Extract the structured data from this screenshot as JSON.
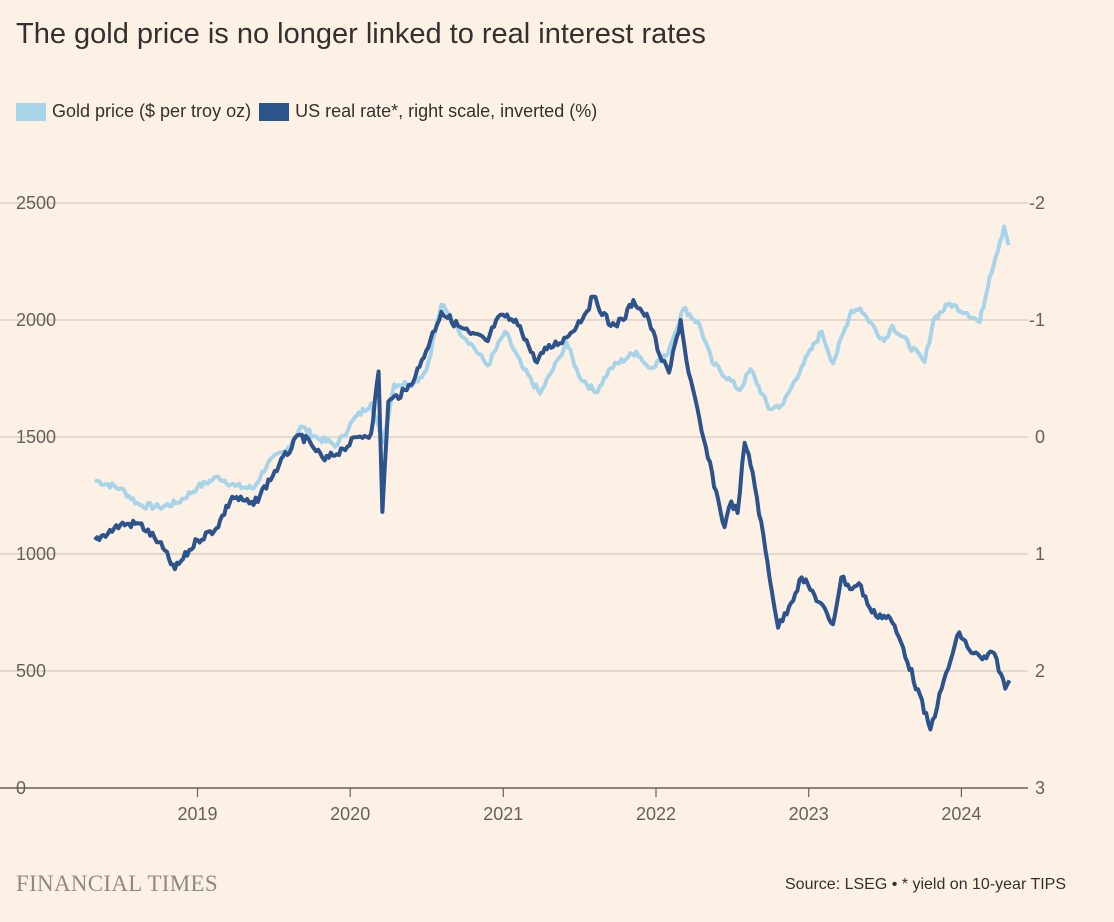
{
  "title": "The gold price is no longer linked to real interest rates",
  "legend": [
    {
      "label": "Gold price ($ per troy oz)",
      "color": "#a8d4ea"
    },
    {
      "label": "US real rate*, right scale, inverted (%)",
      "color": "#2c538c"
    }
  ],
  "source": "Source: LSEG • * yield on 10-year TIPS",
  "brand": "FINANCIAL TIMES",
  "colors": {
    "background": "#fdf1e6",
    "grid": "#ccc1b7",
    "gold": "#a8d4ea",
    "rate": "#2c538c"
  },
  "chart_data": {
    "type": "line",
    "title": "The gold price is no longer linked to real interest rates",
    "x_range": [
      "2018-05-01",
      "2024-05-01"
    ],
    "x_ticks": [
      "2019",
      "2020",
      "2021",
      "2022",
      "2023",
      "2024"
    ],
    "y_left": {
      "ticks": [
        "0",
        "500",
        "1000",
        "1500",
        "2000",
        "2500"
      ],
      "range": [
        0,
        2500
      ]
    },
    "y_right": {
      "ticks": [
        "-2",
        "-1",
        "0",
        "1",
        "2",
        "3"
      ],
      "range": [
        -2,
        3
      ],
      "inverted": true
    },
    "grid": "horizontal",
    "legend_position": "top-left",
    "series": [
      {
        "name": "Gold price ($ per troy oz)",
        "axis": "left",
        "color": "#a8d4ea",
        "points": [
          [
            "2018-05-01",
            1315
          ],
          [
            "2018-07-01",
            1280
          ],
          [
            "2018-08-15",
            1210
          ],
          [
            "2018-10-01",
            1200
          ],
          [
            "2018-11-15",
            1220
          ],
          [
            "2019-01-01",
            1285
          ],
          [
            "2019-02-20",
            1330
          ],
          [
            "2019-04-01",
            1290
          ],
          [
            "2019-05-15",
            1280
          ],
          [
            "2019-06-20",
            1395
          ],
          [
            "2019-08-01",
            1440
          ],
          [
            "2019-09-05",
            1545
          ],
          [
            "2019-10-15",
            1495
          ],
          [
            "2019-12-01",
            1465
          ],
          [
            "2020-01-07",
            1570
          ],
          [
            "2020-02-20",
            1645
          ],
          [
            "2020-03-19",
            1475
          ],
          [
            "2020-04-15",
            1725
          ],
          [
            "2020-06-01",
            1730
          ],
          [
            "2020-07-01",
            1785
          ],
          [
            "2020-08-06",
            2065
          ],
          [
            "2020-09-15",
            1960
          ],
          [
            "2020-10-15",
            1900
          ],
          [
            "2020-11-25",
            1805
          ],
          [
            "2021-01-05",
            1950
          ],
          [
            "2021-02-15",
            1800
          ],
          [
            "2021-03-30",
            1685
          ],
          [
            "2021-05-15",
            1840
          ],
          [
            "2021-06-01",
            1905
          ],
          [
            "2021-06-30",
            1765
          ],
          [
            "2021-08-09",
            1690
          ],
          [
            "2021-09-15",
            1795
          ],
          [
            "2021-11-15",
            1865
          ],
          [
            "2021-12-15",
            1795
          ],
          [
            "2022-01-25",
            1845
          ],
          [
            "2022-03-08",
            2050
          ],
          [
            "2022-04-15",
            1980
          ],
          [
            "2022-05-15",
            1820
          ],
          [
            "2022-07-20",
            1700
          ],
          [
            "2022-08-15",
            1790
          ],
          [
            "2022-09-28",
            1620
          ],
          [
            "2022-11-01",
            1640
          ],
          [
            "2022-12-15",
            1800
          ],
          [
            "2023-02-01",
            1950
          ],
          [
            "2023-02-28",
            1815
          ],
          [
            "2023-04-13",
            2040
          ],
          [
            "2023-05-04",
            2050
          ],
          [
            "2023-06-30",
            1910
          ],
          [
            "2023-07-20",
            1975
          ],
          [
            "2023-10-05",
            1820
          ],
          [
            "2023-10-27",
            2005
          ],
          [
            "2023-12-04",
            2070
          ],
          [
            "2024-01-15",
            2030
          ],
          [
            "2024-02-14",
            1990
          ],
          [
            "2024-03-08",
            2180
          ],
          [
            "2024-04-12",
            2400
          ],
          [
            "2024-04-23",
            2320
          ]
        ]
      },
      {
        "name": "US real rate*, right scale, inverted (%)",
        "axis": "right",
        "color": "#2c538c",
        "points": [
          [
            "2018-05-01",
            0.88
          ],
          [
            "2018-07-01",
            0.75
          ],
          [
            "2018-08-15",
            0.74
          ],
          [
            "2018-10-01",
            0.9
          ],
          [
            "2018-11-08",
            1.13
          ],
          [
            "2019-01-01",
            0.88
          ],
          [
            "2019-02-15",
            0.78
          ],
          [
            "2019-03-25",
            0.51
          ],
          [
            "2019-05-15",
            0.58
          ],
          [
            "2019-07-15",
            0.24
          ],
          [
            "2019-09-03",
            -0.02
          ],
          [
            "2019-10-01",
            0.07
          ],
          [
            "2019-11-01",
            0.2
          ],
          [
            "2019-12-15",
            0.1
          ],
          [
            "2020-01-20",
            0.0
          ],
          [
            "2020-02-20",
            -0.03
          ],
          [
            "2020-03-09",
            -0.56
          ],
          [
            "2020-03-18",
            0.64
          ],
          [
            "2020-04-01",
            -0.3
          ],
          [
            "2020-05-15",
            -0.4
          ],
          [
            "2020-06-15",
            -0.6
          ],
          [
            "2020-08-06",
            -1.07
          ],
          [
            "2020-09-15",
            -0.95
          ],
          [
            "2020-10-15",
            -0.88
          ],
          [
            "2020-11-25",
            -0.82
          ],
          [
            "2020-12-15",
            -1.0
          ],
          [
            "2021-01-05",
            -1.03
          ],
          [
            "2021-02-10",
            -0.95
          ],
          [
            "2021-03-18",
            -0.65
          ],
          [
            "2021-04-15",
            -0.75
          ],
          [
            "2021-06-01",
            -0.85
          ],
          [
            "2021-07-15",
            -1.05
          ],
          [
            "2021-08-04",
            -1.2
          ],
          [
            "2021-09-15",
            -0.95
          ],
          [
            "2021-10-15",
            -1.0
          ],
          [
            "2021-11-08",
            -1.17
          ],
          [
            "2021-12-15",
            -1.0
          ],
          [
            "2022-01-15",
            -0.65
          ],
          [
            "2022-02-01",
            -0.55
          ],
          [
            "2022-03-01",
            -1.0
          ],
          [
            "2022-03-15",
            -0.65
          ],
          [
            "2022-04-20",
            -0.05
          ],
          [
            "2022-06-14",
            0.77
          ],
          [
            "2022-06-30",
            0.55
          ],
          [
            "2022-07-15",
            0.65
          ],
          [
            "2022-08-01",
            0.05
          ],
          [
            "2022-08-20",
            0.3
          ],
          [
            "2022-10-20",
            1.63
          ],
          [
            "2022-11-15",
            1.45
          ],
          [
            "2022-12-15",
            1.2
          ],
          [
            "2023-01-15",
            1.35
          ],
          [
            "2023-02-28",
            1.6
          ],
          [
            "2023-03-20",
            1.2
          ],
          [
            "2023-04-15",
            1.3
          ],
          [
            "2023-05-01",
            1.25
          ],
          [
            "2023-06-01",
            1.5
          ],
          [
            "2023-07-15",
            1.55
          ],
          [
            "2023-08-15",
            1.8
          ],
          [
            "2023-10-19",
            2.5
          ],
          [
            "2023-11-15",
            2.15
          ],
          [
            "2023-12-27",
            1.67
          ],
          [
            "2024-01-20",
            1.82
          ],
          [
            "2024-02-20",
            1.9
          ],
          [
            "2024-03-20",
            1.85
          ],
          [
            "2024-04-15",
            2.15
          ],
          [
            "2024-04-25",
            2.08
          ]
        ]
      }
    ]
  }
}
